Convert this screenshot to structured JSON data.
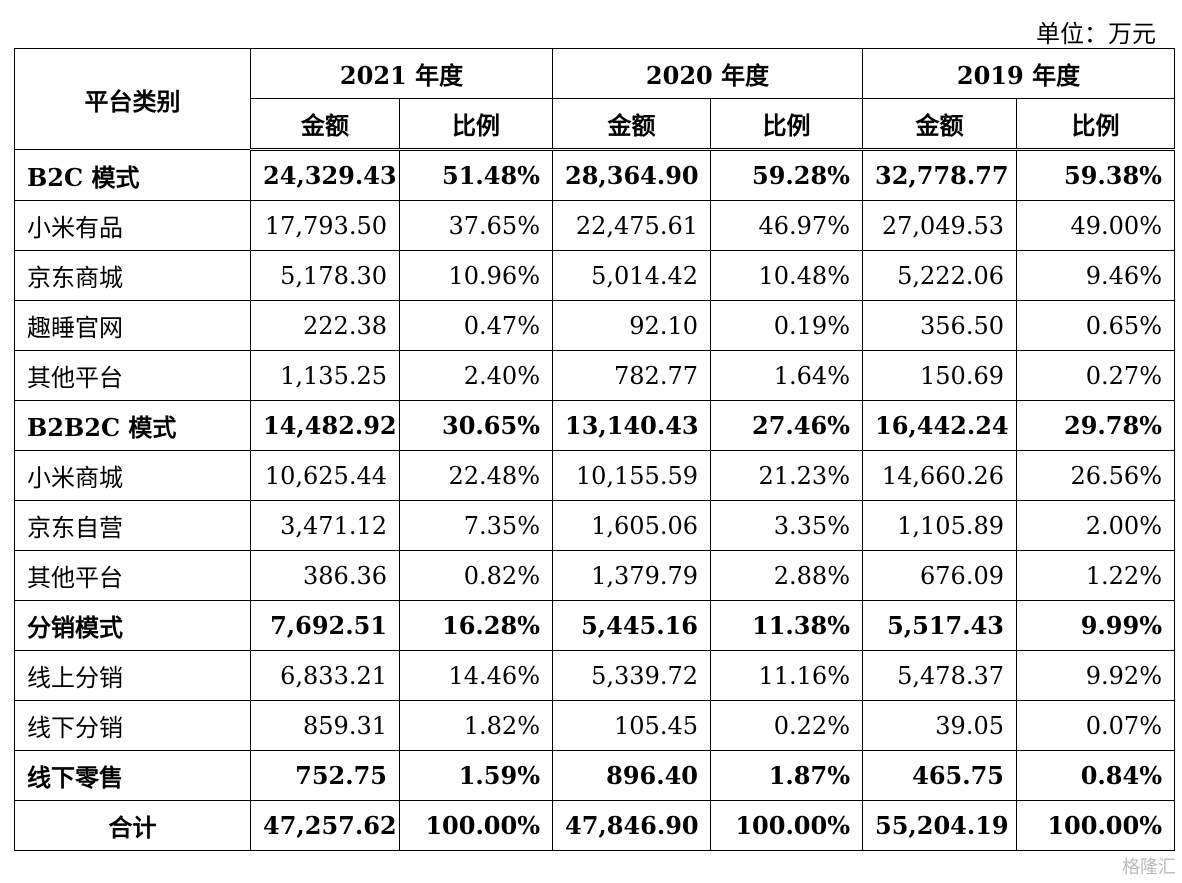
{
  "unit_label": "单位：万元",
  "header": {
    "category": "平台类别",
    "years": [
      "2021 年度",
      "2020 年度",
      "2019 年度"
    ],
    "amount": "金额",
    "ratio": "比例"
  },
  "rows": [
    {
      "label": "B2C 模式",
      "bold": true,
      "values": [
        "24,329.43",
        "51.48%",
        "28,364.90",
        "59.28%",
        "32,778.77",
        "59.38%"
      ]
    },
    {
      "label": "小米有品",
      "bold": false,
      "values": [
        "17,793.50",
        "37.65%",
        "22,475.61",
        "46.97%",
        "27,049.53",
        "49.00%"
      ]
    },
    {
      "label": "京东商城",
      "bold": false,
      "values": [
        "5,178.30",
        "10.96%",
        "5,014.42",
        "10.48%",
        "5,222.06",
        "9.46%"
      ]
    },
    {
      "label": "趣睡官网",
      "bold": false,
      "values": [
        "222.38",
        "0.47%",
        "92.10",
        "0.19%",
        "356.50",
        "0.65%"
      ]
    },
    {
      "label": "其他平台",
      "bold": false,
      "values": [
        "1,135.25",
        "2.40%",
        "782.77",
        "1.64%",
        "150.69",
        "0.27%"
      ]
    },
    {
      "label": "B2B2C 模式",
      "bold": true,
      "values": [
        "14,482.92",
        "30.65%",
        "13,140.43",
        "27.46%",
        "16,442.24",
        "29.78%"
      ]
    },
    {
      "label": "小米商城",
      "bold": false,
      "values": [
        "10,625.44",
        "22.48%",
        "10,155.59",
        "21.23%",
        "14,660.26",
        "26.56%"
      ]
    },
    {
      "label": "京东自营",
      "bold": false,
      "values": [
        "3,471.12",
        "7.35%",
        "1,605.06",
        "3.35%",
        "1,105.89",
        "2.00%"
      ]
    },
    {
      "label": "其他平台",
      "bold": false,
      "values": [
        "386.36",
        "0.82%",
        "1,379.79",
        "2.88%",
        "676.09",
        "1.22%"
      ]
    },
    {
      "label": "分销模式",
      "bold": true,
      "values": [
        "7,692.51",
        "16.28%",
        "5,445.16",
        "11.38%",
        "5,517.43",
        "9.99%"
      ]
    },
    {
      "label": "线上分销",
      "bold": false,
      "values": [
        "6,833.21",
        "14.46%",
        "5,339.72",
        "11.16%",
        "5,478.37",
        "9.92%"
      ]
    },
    {
      "label": "线下分销",
      "bold": false,
      "values": [
        "859.31",
        "1.82%",
        "105.45",
        "0.22%",
        "39.05",
        "0.07%"
      ]
    },
    {
      "label": "线下零售",
      "bold": true,
      "values": [
        "752.75",
        "1.59%",
        "896.40",
        "1.87%",
        "465.75",
        "0.84%"
      ]
    },
    {
      "label": "合计",
      "bold": true,
      "center": true,
      "values": [
        "47,257.62",
        "100.00%",
        "47,846.90",
        "100.00%",
        "55,204.19",
        "100.00%"
      ]
    }
  ],
  "watermark": "格隆汇"
}
